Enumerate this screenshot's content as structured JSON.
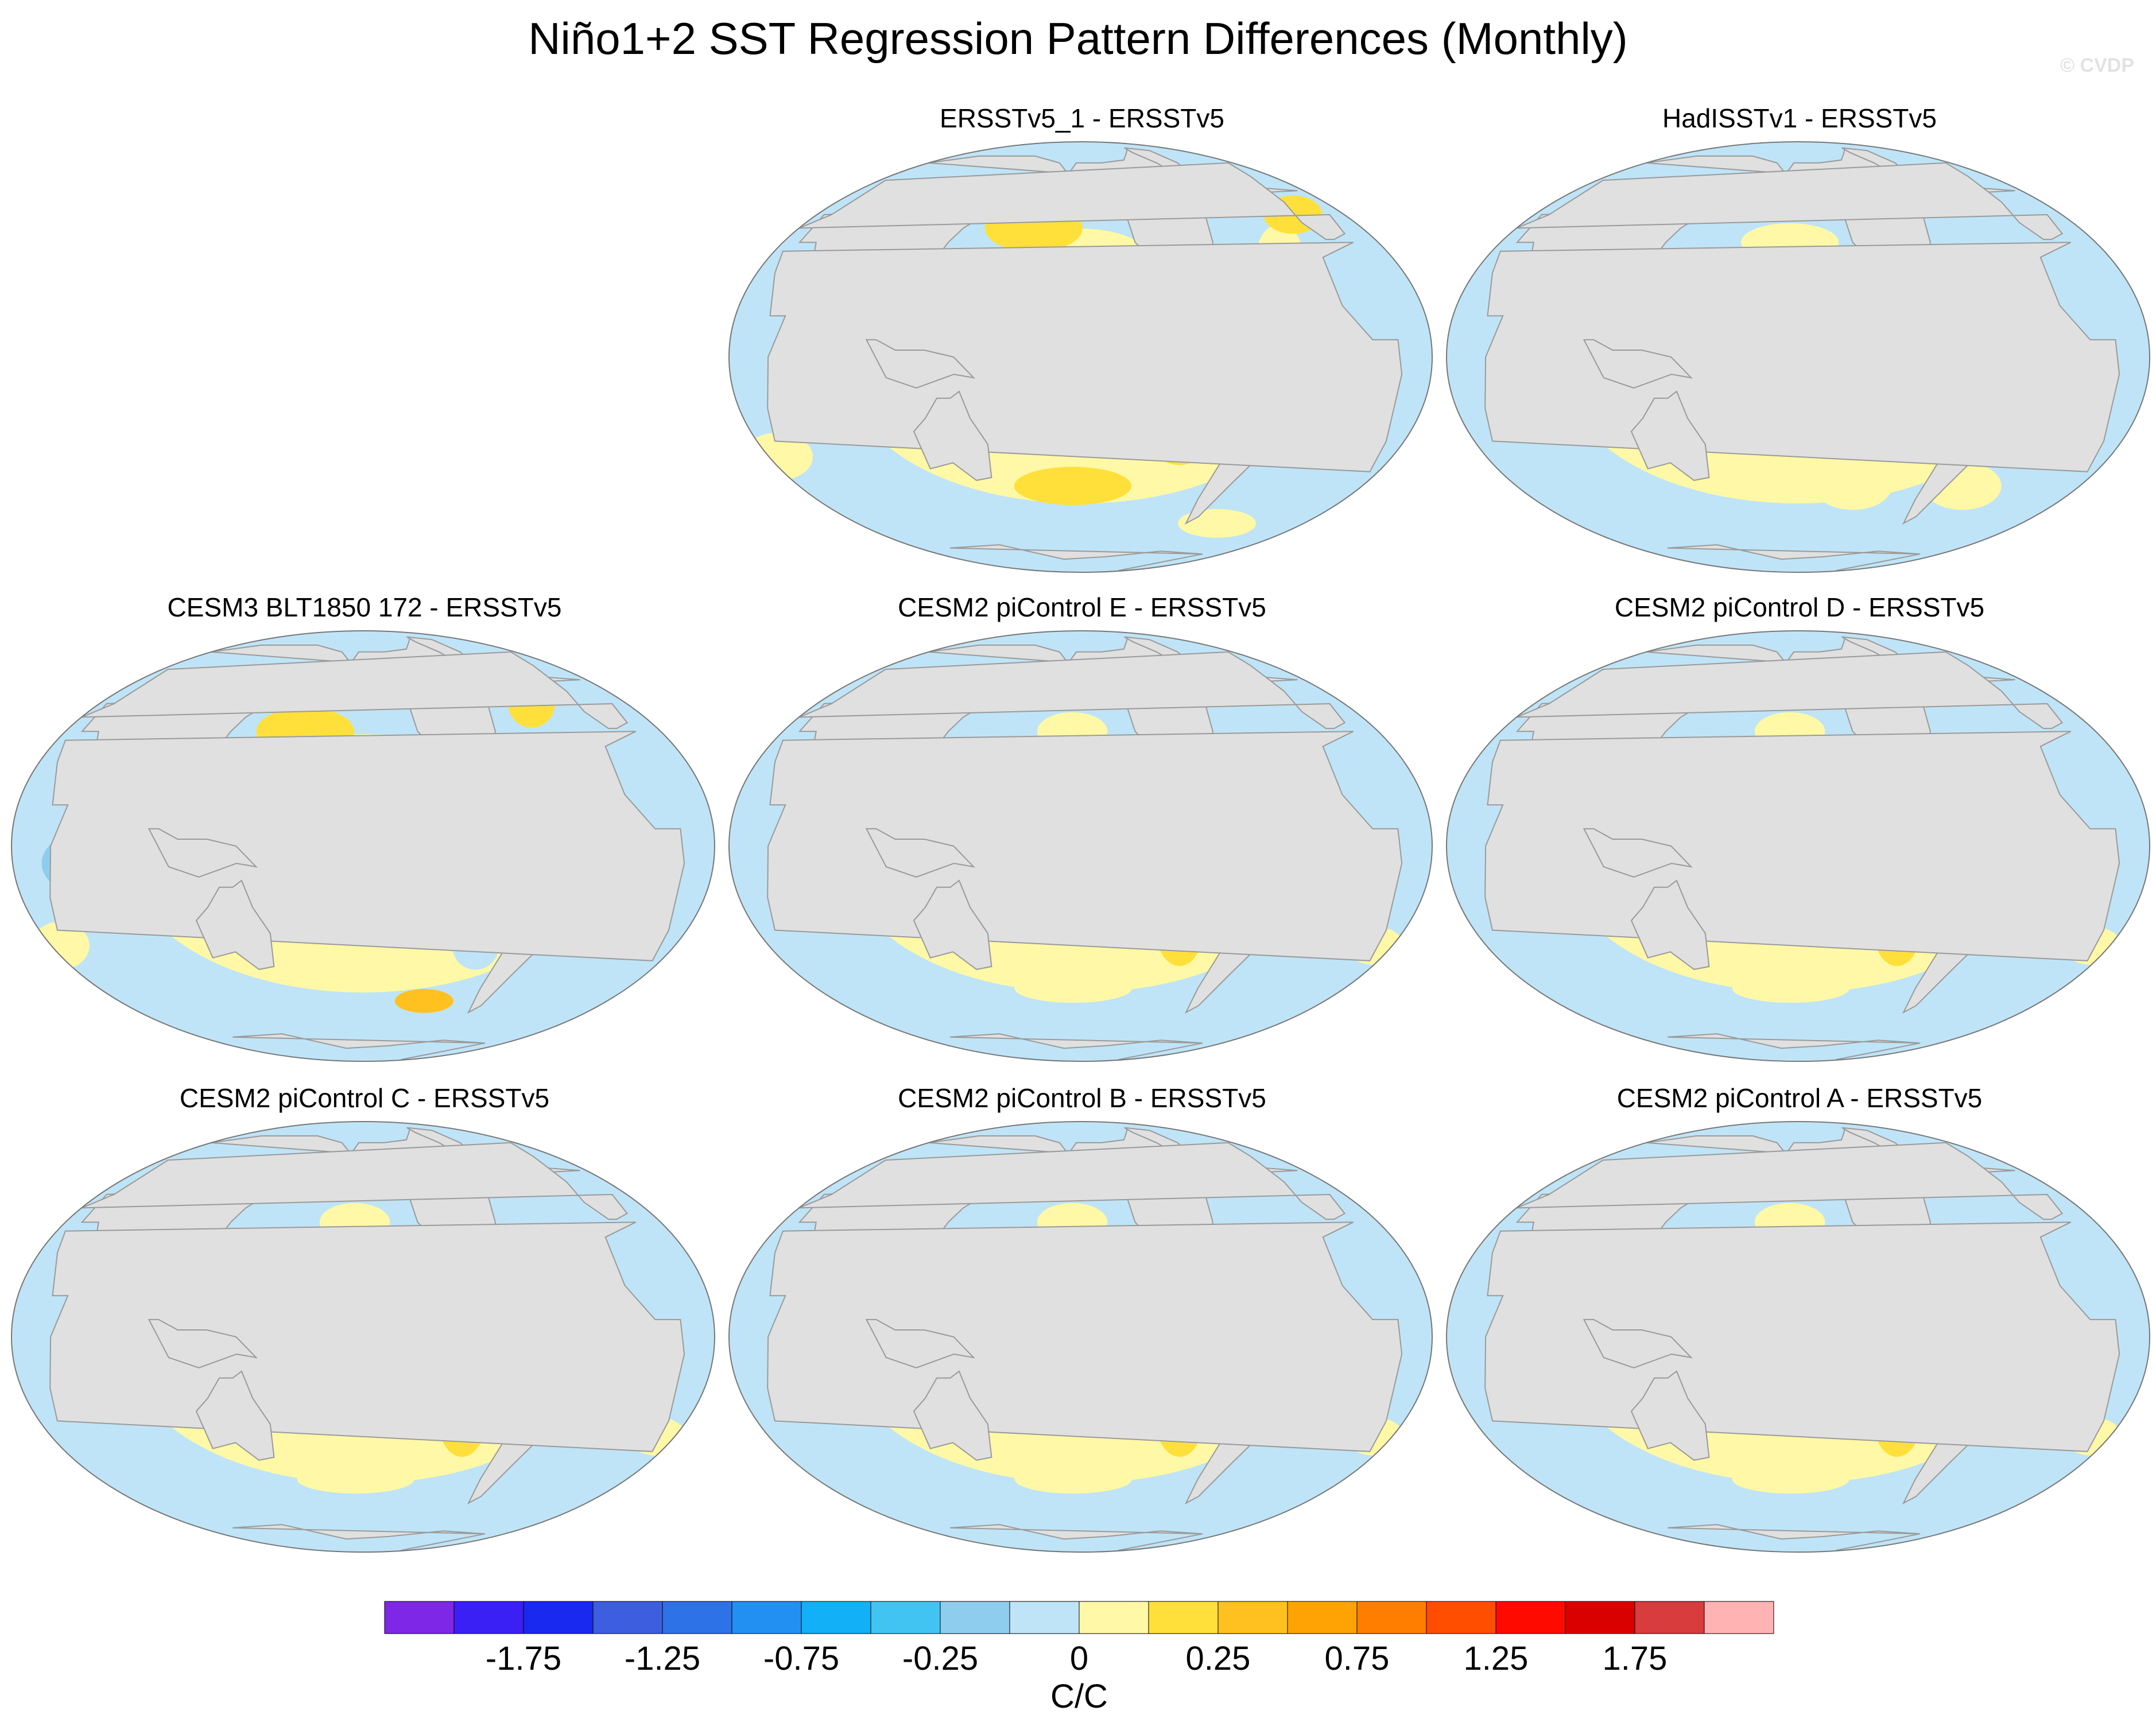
{
  "title": "Niño1+2 SST Regression Pattern Differences (Monthly)",
  "watermark": "© CVDP",
  "panels": [
    {
      "title": "ERSSTv5_1 - ERSSTv5",
      "pattern": "obs1"
    },
    {
      "title": "HadISSTv1 - ERSSTv5",
      "pattern": "obs2"
    },
    {
      "title": "CESM3 BLT1850 172 - ERSSTv5",
      "pattern": "cesm3"
    },
    {
      "title": "CESM2 piControl E - ERSSTv5",
      "pattern": "cesm2"
    },
    {
      "title": "CESM2 piControl D - ERSSTv5",
      "pattern": "cesm2"
    },
    {
      "title": "CESM2 piControl C - ERSSTv5",
      "pattern": "cesm2"
    },
    {
      "title": "CESM2 piControl B - ERSSTv5",
      "pattern": "cesm2"
    },
    {
      "title": "CESM2 piControl A - ERSSTv5",
      "pattern": "cesm2"
    }
  ],
  "colorbar": {
    "colors": [
      "#7f27e6",
      "#3a20f5",
      "#1929ef",
      "#3d5edf",
      "#2e72e8",
      "#2190f2",
      "#12b0f7",
      "#42c4f2",
      "#8fcdef",
      "#bfe4f7",
      "#fff8a6",
      "#ffe03a",
      "#ffc11f",
      "#ffa305",
      "#ff7e00",
      "#ff4e00",
      "#ff0a00",
      "#d90000",
      "#d93c3c",
      "#ffb3b3"
    ],
    "labels": [
      "-1.75",
      "-1.25",
      "-0.75",
      "-0.25",
      "0",
      "0.25",
      "0.75",
      "1.25",
      "1.75"
    ],
    "unit": "C/C"
  },
  "colors": {
    "land": "#e0e0e0",
    "coast": "#9a9a9a",
    "ocean_zero": "#ffffff"
  }
}
